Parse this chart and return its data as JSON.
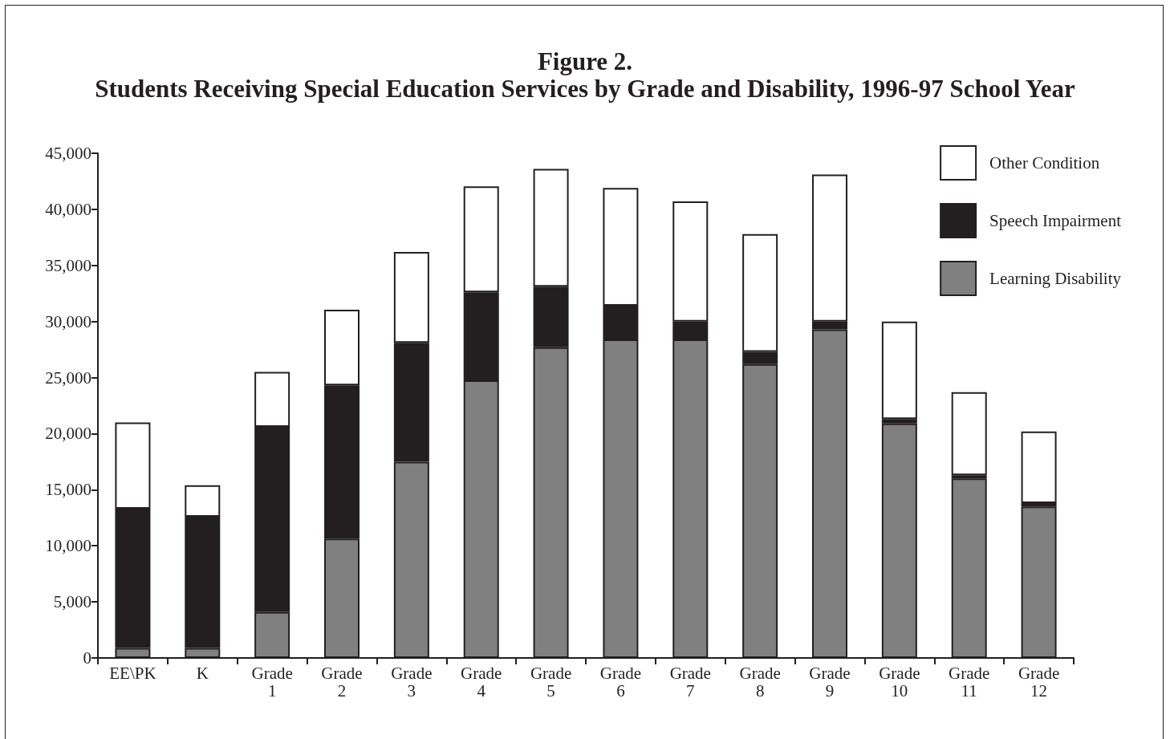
{
  "chart_data": {
    "type": "bar",
    "title": "Figure 2.",
    "subtitle": "Students Receiving Special Education Services by Grade and Disability, 1996-97 School Year",
    "categories": [
      "EE\\PK",
      "K",
      "Grade 1",
      "Grade 2",
      "Grade 3",
      "Grade 4",
      "Grade 5",
      "Grade 6",
      "Grade 7",
      "Grade 8",
      "Grade 9",
      "Grade 10",
      "Grade 11",
      "Grade 12"
    ],
    "stacked": true,
    "series": [
      {
        "name": "Learning Disability",
        "color": "#808080",
        "values": [
          900,
          900,
          4100,
          10650,
          17500,
          24750,
          27700,
          28400,
          28400,
          26200,
          29300,
          20900,
          16000,
          13500
        ]
      },
      {
        "name": "Speech Impairment",
        "color": "#231f20",
        "values": [
          12400,
          11700,
          16500,
          13650,
          10600,
          7850,
          5400,
          3000,
          1600,
          1100,
          700,
          400,
          300,
          300
        ]
      },
      {
        "name": "Other Condition",
        "color": "#ffffff",
        "values": [
          7700,
          2800,
          4900,
          6750,
          8100,
          9450,
          10500,
          10500,
          10700,
          10500,
          13100,
          8700,
          7400,
          6400
        ]
      }
    ],
    "ylim": [
      0,
      45000
    ],
    "yticks": [
      0,
      {
        "value": 5000,
        "label": "5,000"
      },
      {
        "value": 10000,
        "label": "10,000"
      },
      {
        "value": 15000,
        "label": "15,000"
      },
      {
        "value": 20000,
        "label": "20,000"
      },
      {
        "value": 25000,
        "label": "25,000"
      },
      {
        "value": 30000,
        "label": "30,000"
      },
      {
        "value": 35000,
        "label": "35,000"
      },
      {
        "value": 40000,
        "label": "40,000"
      },
      {
        "value": 45000,
        "label": "45,000"
      }
    ],
    "grid": false,
    "legend": "top right"
  }
}
